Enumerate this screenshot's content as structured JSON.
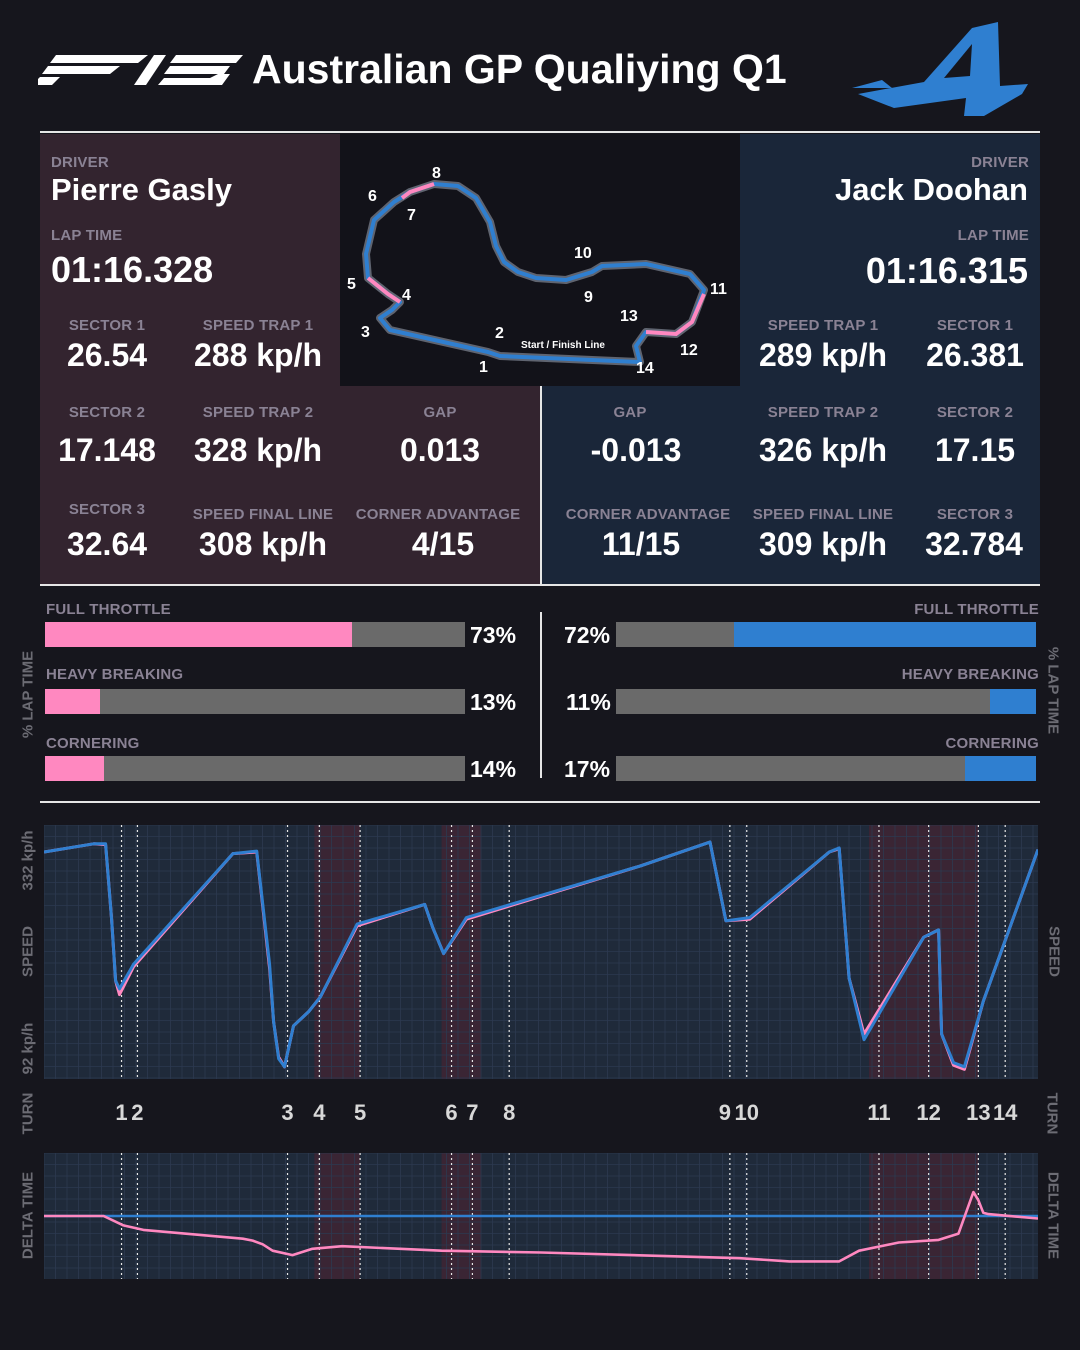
{
  "header": {
    "logo_text": "F1 25",
    "title": "Australian GP Qualiying Q1",
    "team_logo": "alpine-logo"
  },
  "colors": {
    "gasly": "#ff88c0",
    "doohan": "#2f7fd0",
    "panel_left": "#33242f",
    "panel_right": "#1a2639",
    "bar_bg": "#6a6a6a",
    "background": "#16161d"
  },
  "left": {
    "driver_label": "DRIVER",
    "driver": "Pierre Gasly",
    "lap_label": "LAP TIME",
    "lap_time": "01:16.328",
    "s1_label": "SECTOR 1",
    "s1": "26.54",
    "st1_label": "SPEED TRAP 1",
    "st1": "288 kp/h",
    "s2_label": "SECTOR 2",
    "s2": "17.148",
    "st2_label": "SPEED TRAP 2",
    "st2": "328 kp/h",
    "gap_label": "GAP",
    "gap": "0.013",
    "s3_label": "SECTOR 3",
    "s3": "32.64",
    "sfl_label": "SPEED FINAL LINE",
    "sfl": "308 kp/h",
    "ca_label": "CORNER ADVANTAGE",
    "ca": "4/15"
  },
  "right": {
    "driver_label": "DRIVER",
    "driver": "Jack Doohan",
    "lap_label": "LAP TIME",
    "lap_time": "01:16.315",
    "st1_label": "SPEED TRAP 1",
    "st1": "289 kp/h",
    "s1_label": "SECTOR 1",
    "s1": "26.381",
    "gap_label": "GAP",
    "gap": "-0.013",
    "st2_label": "SPEED TRAP 2",
    "st2": "326 kp/h",
    "s2_label": "SECTOR 2",
    "s2": "17.15",
    "ca_label": "CORNER ADVANTAGE",
    "ca": "11/15",
    "sfl_label": "SPEED FINAL LINE",
    "sfl": "309 kp/h",
    "s3_label": "SECTOR 3",
    "s3": "32.784"
  },
  "track": {
    "start_finish": "Start / Finish Line",
    "corners": [
      "1",
      "2",
      "3",
      "4",
      "5",
      "6",
      "7",
      "8",
      "9",
      "10",
      "11",
      "12",
      "13",
      "14"
    ]
  },
  "usage": {
    "axis_label": "% LAP TIME",
    "left": [
      {
        "label": "FULL THROTTLE",
        "pct": 73,
        "text": "73%"
      },
      {
        "label": "HEAVY BREAKING",
        "pct": 13,
        "text": "13%"
      },
      {
        "label": "CORNERING",
        "pct": 14,
        "text": "14%"
      }
    ],
    "right": [
      {
        "label": "FULL THROTTLE",
        "pct": 72,
        "text": "72%"
      },
      {
        "label": "HEAVY BREAKING",
        "pct": 11,
        "text": "11%"
      },
      {
        "label": "CORNERING",
        "pct": 17,
        "text": "17%"
      }
    ]
  },
  "chart_data": [
    {
      "type": "line",
      "title": "SPEED",
      "ylabel": "SPEED",
      "ylim": [
        50,
        350
      ],
      "y_ticks": [
        "332 kp/h",
        "92 kp/h"
      ],
      "x_label": "TURN",
      "turn_labels": [
        {
          "t": "1",
          "d": 0.078
        },
        {
          "t": "2",
          "d": 0.094
        },
        {
          "t": "3",
          "d": 0.245
        },
        {
          "t": "4",
          "d": 0.277
        },
        {
          "t": "5",
          "d": 0.318
        },
        {
          "t": "6",
          "d": 0.41
        },
        {
          "t": "7",
          "d": 0.431
        },
        {
          "t": "8",
          "d": 0.468
        },
        {
          "t": "9",
          "d": 0.685
        },
        {
          "t": "10",
          "d": 0.707
        },
        {
          "t": "11",
          "d": 0.84
        },
        {
          "t": "12",
          "d": 0.89
        },
        {
          "t": "13",
          "d": 0.94
        },
        {
          "t": "14",
          "d": 0.967
        }
      ],
      "turn_lines": [
        0.078,
        0.094,
        0.245,
        0.277,
        0.318,
        0.41,
        0.431,
        0.468,
        0.69,
        0.707,
        0.84,
        0.89,
        0.94,
        0.967
      ],
      "sections": [
        [
          0.272,
          0.318
        ],
        [
          0.4,
          0.44
        ],
        [
          0.83,
          0.94
        ]
      ],
      "x": [
        0,
        0.05,
        0.062,
        0.068,
        0.072,
        0.076,
        0.09,
        0.19,
        0.214,
        0.227,
        0.231,
        0.236,
        0.242,
        0.251,
        0.266,
        0.278,
        0.315,
        0.383,
        0.391,
        0.402,
        0.425,
        0.6,
        0.67,
        0.686,
        0.71,
        0.79,
        0.8,
        0.81,
        0.825,
        0.885,
        0.9,
        0.903,
        0.915,
        0.926,
        0.945,
        1
      ],
      "series": [
        {
          "name": "Pierre Gasly",
          "color": "#ff88c0",
          "values": [
            322,
            332,
            331,
            240,
            165,
            148,
            182,
            320,
            322,
            180,
            115,
            72,
            60,
            110,
            127,
            145,
            232,
            258,
            230,
            198,
            240,
            305,
            334,
            238,
            240,
            322,
            326,
            168,
            100,
            218,
            227,
            100,
            62,
            57,
            140,
            325
          ]
        },
        {
          "name": "Jack Doohan",
          "color": "#2f7fd0",
          "values": [
            322,
            332,
            332,
            240,
            165,
            155,
            185,
            320,
            323,
            185,
            115,
            70,
            60,
            110,
            127,
            145,
            234,
            258,
            230,
            198,
            242,
            305,
            334,
            238,
            242,
            322,
            327,
            168,
            93,
            218,
            227,
            100,
            65,
            60,
            140,
            325
          ]
        }
      ]
    },
    {
      "type": "line",
      "title": "DELTA TIME",
      "ylabel": "DELTA TIME",
      "ylim": [
        -1,
        1
      ],
      "turn_lines": [
        0.078,
        0.094,
        0.245,
        0.277,
        0.318,
        0.41,
        0.431,
        0.468,
        0.69,
        0.707,
        0.84,
        0.89,
        0.94,
        0.967
      ],
      "sections": [
        [
          0.272,
          0.318
        ],
        [
          0.4,
          0.44
        ],
        [
          0.83,
          0.94
        ]
      ],
      "x": [
        0,
        0.06,
        0.08,
        0.1,
        0.2,
        0.21,
        0.22,
        0.23,
        0.25,
        0.27,
        0.3,
        0.4,
        0.5,
        0.7,
        0.75,
        0.8,
        0.82,
        0.86,
        0.9,
        0.92,
        0.935,
        0.94,
        0.945,
        0.95,
        1
      ],
      "series": [
        {
          "name": "Pierre Gasly",
          "color": "#ff88c0",
          "values": [
            0,
            0,
            -0.15,
            -0.22,
            -0.36,
            -0.39,
            -0.45,
            -0.55,
            -0.62,
            -0.52,
            -0.48,
            -0.55,
            -0.58,
            -0.67,
            -0.72,
            -0.72,
            -0.55,
            -0.42,
            -0.38,
            -0.28,
            0.38,
            0.25,
            0.05,
            0.03,
            -0.04
          ]
        },
        {
          "name": "Jack Doohan",
          "color": "#2f7fd0",
          "values": [
            0,
            0,
            0,
            0,
            0,
            0,
            0,
            0,
            0,
            0,
            0,
            0,
            0,
            0,
            0,
            0,
            0,
            0,
            0,
            0,
            0,
            0,
            0,
            0,
            0
          ]
        }
      ]
    }
  ]
}
